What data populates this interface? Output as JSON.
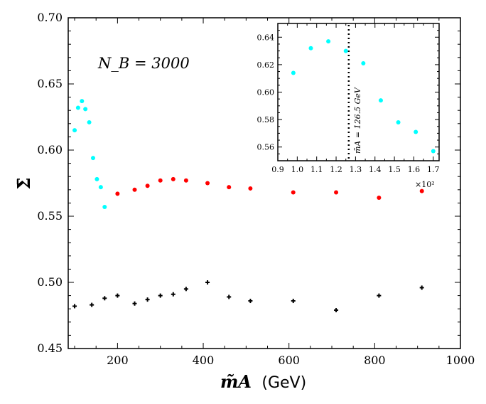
{
  "chart_data": [
    {
      "type": "scatter",
      "name": "main",
      "xlabel": "m̃A",
      "xlabel_unit": "(GeV)",
      "ylabel": "Σ̄",
      "xlim": [
        85,
        1000
      ],
      "ylim": [
        0.45,
        0.7
      ],
      "xticks": [
        200,
        400,
        600,
        800,
        1000
      ],
      "xtick_labels": [
        "200",
        "400",
        "600",
        "800",
        "1000"
      ],
      "yticks": [
        0.45,
        0.5,
        0.55,
        0.6,
        0.65,
        0.7
      ],
      "ytick_labels": [
        "0.45",
        "0.50",
        "0.55",
        "0.60",
        "0.65",
        "0.70"
      ],
      "annotation": "N_B = 3000",
      "series": [
        {
          "name": "cyan",
          "color": "#00ffff",
          "marker": "circle",
          "x": [
            100,
            108,
            117,
            125,
            134,
            143,
            152,
            161,
            170
          ],
          "y": [
            0.615,
            0.632,
            0.637,
            0.631,
            0.621,
            0.594,
            0.578,
            0.572,
            0.557
          ]
        },
        {
          "name": "red",
          "color": "#ff0000",
          "marker": "circle",
          "x": [
            200,
            240,
            270,
            300,
            330,
            360,
            410,
            460,
            510,
            610,
            710,
            810,
            910
          ],
          "y": [
            0.567,
            0.57,
            0.573,
            0.577,
            0.578,
            0.577,
            0.575,
            0.572,
            0.571,
            0.568,
            0.568,
            0.564,
            0.569
          ]
        },
        {
          "name": "black",
          "color": "#000000",
          "marker": "plus",
          "x": [
            100,
            140,
            170,
            200,
            240,
            270,
            300,
            330,
            360,
            410,
            460,
            510,
            610,
            710,
            810,
            910
          ],
          "y": [
            0.482,
            0.483,
            0.488,
            0.49,
            0.484,
            0.487,
            0.49,
            0.491,
            0.495,
            0.5,
            0.489,
            0.486,
            0.486,
            0.479,
            0.49,
            0.496
          ]
        }
      ]
    },
    {
      "type": "scatter",
      "name": "inset",
      "xlim": [
        0.9,
        1.73
      ],
      "ylim": [
        0.55,
        0.65
      ],
      "xticks": [
        0.9,
        1.0,
        1.1,
        1.2,
        1.3,
        1.4,
        1.5,
        1.6,
        1.7
      ],
      "xtick_labels": [
        "0.9",
        "1.0",
        "1.1",
        "1.2",
        "1.3",
        "1.4",
        "1.5",
        "1.6",
        "1.7"
      ],
      "yticks": [
        0.56,
        0.58,
        0.6,
        0.62,
        0.64
      ],
      "ytick_labels": [
        "0.56",
        "0.58",
        "0.60",
        "0.62",
        "0.64"
      ],
      "x_scale_label": "×10²",
      "vline_x": 1.265,
      "vline_label": "m̃A = 126.5 GeV",
      "series": [
        {
          "name": "cyan",
          "color": "#00ffff",
          "marker": "circle",
          "x": [
            0.98,
            1.07,
            1.16,
            1.25,
            1.34,
            1.43,
            1.52,
            1.61,
            1.7
          ],
          "y": [
            0.614,
            0.632,
            0.637,
            0.63,
            0.621,
            0.594,
            0.578,
            0.571,
            0.557
          ]
        }
      ]
    }
  ]
}
